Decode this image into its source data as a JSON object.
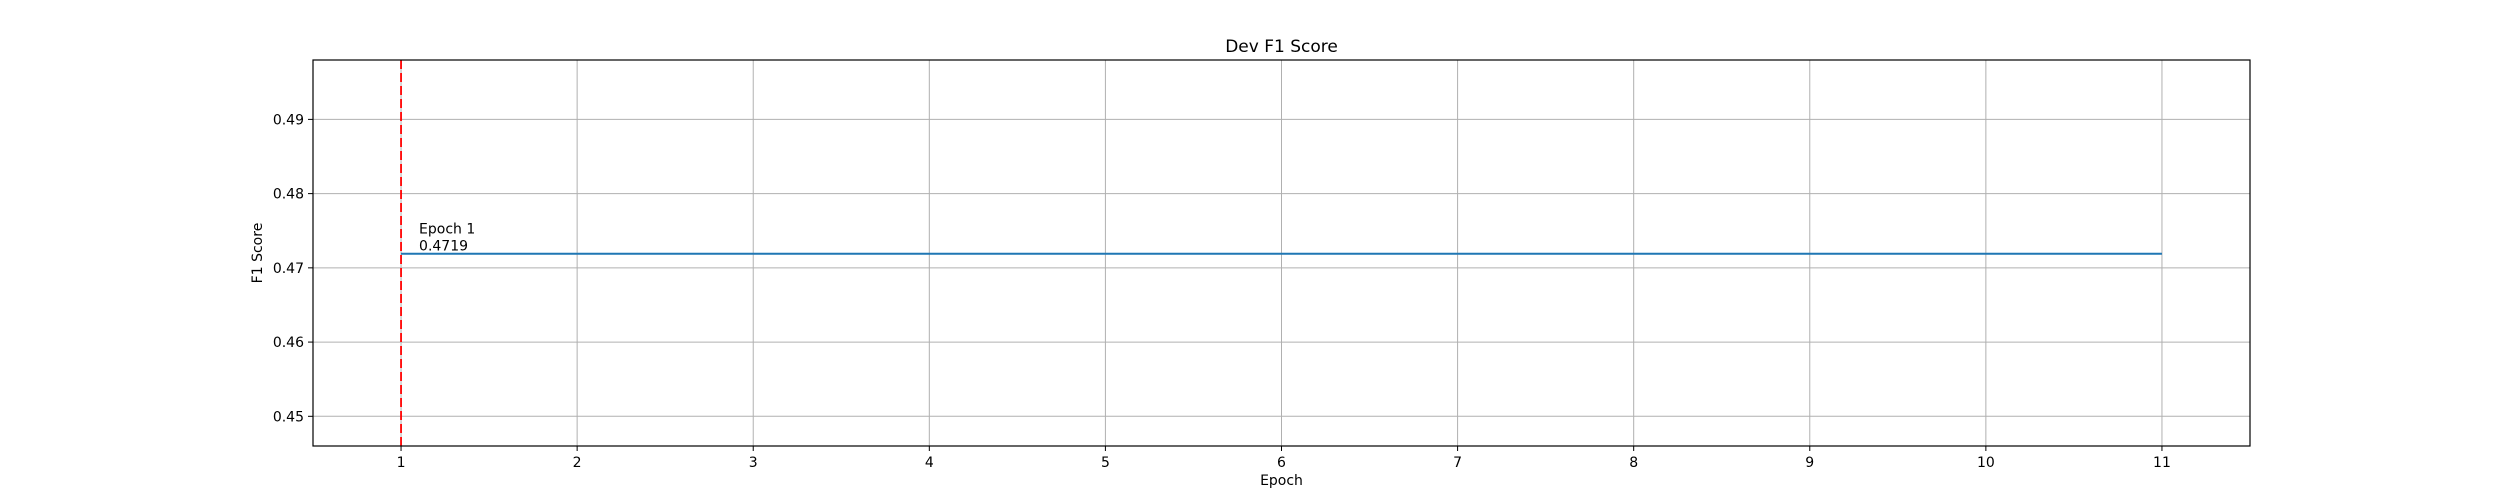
{
  "chart_data": {
    "type": "line",
    "title": "Dev F1 Score",
    "xlabel": "Epoch",
    "ylabel": "F1 Score",
    "xlim": [
      0.5,
      11.5
    ],
    "ylim": [
      0.446,
      0.498
    ],
    "xticks": [
      1,
      2,
      3,
      4,
      5,
      6,
      7,
      8,
      9,
      10,
      11
    ],
    "yticks": [
      0.45,
      0.46,
      0.47,
      0.48,
      0.49
    ],
    "grid": true,
    "series": [
      {
        "x": [
          1,
          2,
          3,
          4,
          5,
          6,
          7,
          8,
          9,
          10,
          11
        ],
        "values": [
          0.4719,
          0.4719,
          0.4719,
          0.4719,
          0.4719,
          0.4719,
          0.4719,
          0.4719,
          0.4719,
          0.4719,
          0.4719
        ],
        "color": "#1f77b4"
      }
    ],
    "best_epoch_marker": {
      "x": 1,
      "color": "#ff0000"
    },
    "annotation": {
      "x": 1,
      "y": 0.4719,
      "line1": "Epoch 1",
      "line2": "0.4719"
    }
  }
}
